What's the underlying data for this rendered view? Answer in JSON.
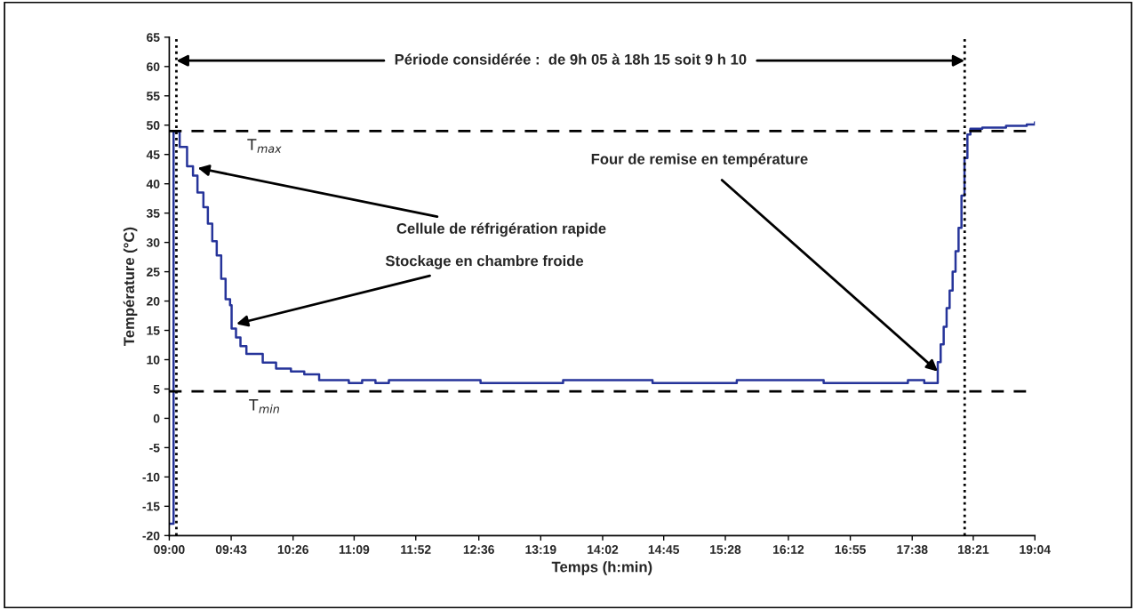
{
  "chart_data": {
    "type": "step",
    "xlabel": "Temps (h:min)",
    "ylabel": "Température (°C)",
    "x": [
      9.0,
      9.05,
      9.069,
      9.121,
      9.207,
      9.276,
      9.328,
      9.397,
      9.449,
      9.5,
      9.552,
      9.604,
      9.655,
      9.707,
      9.725,
      9.776,
      9.828,
      9.897,
      10.087,
      10.242,
      10.415,
      10.57,
      10.743,
      11.088,
      11.243,
      11.398,
      11.554,
      12.62,
      13.58,
      14.62,
      15.6,
      16.61,
      17.59,
      17.78,
      17.937,
      17.971,
      18.006,
      18.04,
      18.075,
      18.11,
      18.144,
      18.179,
      18.213,
      18.248,
      18.282,
      18.317,
      18.455,
      18.731,
      18.972,
      19.0667
    ],
    "series": [
      {
        "color": "#26349a",
        "values": [
          -18,
          48.9,
          48.9,
          46.3,
          43,
          41.4,
          38.5,
          36,
          33.2,
          30.2,
          27.8,
          23.8,
          20.3,
          19.3,
          15.3,
          13.8,
          12.3,
          11,
          9.5,
          8.5,
          8,
          7.5,
          6.5,
          6,
          6.5,
          6,
          6.5,
          6,
          6.5,
          6,
          6.5,
          6,
          6.5,
          6,
          9.6,
          12.6,
          15.6,
          18.8,
          21.8,
          25,
          28.5,
          32.5,
          38,
          44.4,
          48.4,
          49.4,
          49.6,
          49.9,
          50.1,
          50.5
        ]
      }
    ],
    "xlim": [
      9.0,
      19.0667
    ],
    "xticks": [
      {
        "value": 9.0,
        "label": "09:00"
      },
      {
        "value": 9.72,
        "label": "09:43"
      },
      {
        "value": 10.44,
        "label": "10:26"
      },
      {
        "value": 11.15,
        "label": "11:09"
      },
      {
        "value": 11.8667,
        "label": "11:52"
      },
      {
        "value": 12.6,
        "label": "12:36"
      },
      {
        "value": 13.32,
        "label": "13:19"
      },
      {
        "value": 14.04,
        "label": "14:02"
      },
      {
        "value": 14.75,
        "label": "14:45"
      },
      {
        "value": 15.4667,
        "label": "15:28"
      },
      {
        "value": 16.2,
        "label": "16:12"
      },
      {
        "value": 16.92,
        "label": "16:55"
      },
      {
        "value": 17.64,
        "label": "17:38"
      },
      {
        "value": 18.35,
        "label": "18:21"
      },
      {
        "value": 19.0667,
        "label": "19:04"
      }
    ],
    "ylim": [
      -20,
      65
    ],
    "yticks": [
      -20,
      -15,
      -10,
      -5,
      0,
      5,
      10,
      15,
      20,
      25,
      30,
      35,
      40,
      45,
      50,
      55,
      60,
      65
    ],
    "ref_lines": [
      {
        "axis": "y",
        "value": 49,
        "label": "T$_{max}$",
        "color": "#000000",
        "line_style": "dashed"
      },
      {
        "axis": "y",
        "value": 4.6,
        "label": "T$_{min}$",
        "color": "#000000",
        "line_style": "dashed"
      },
      {
        "axis": "x",
        "value": 9.083,
        "color": "#000000",
        "line_style": "dotted"
      },
      {
        "axis": "x",
        "value": 18.25,
        "color": "#000000",
        "line_style": "dotted"
      }
    ],
    "annotations": [
      {
        "text": "Période considérée :  de 9h 05 à 18h 15 soit 9 h 10",
        "x": 9.083,
        "y": 61
      },
      {
        "text": "Cellule de réfrigération rapide",
        "x": 9.33,
        "y": 42.7
      },
      {
        "text": "Stockage en chambre froide",
        "x": 9.78,
        "y": 16.1
      },
      {
        "text": "Four de remise en température",
        "x": 17.937,
        "y": 8
      }
    ],
    "grid": false,
    "legend": false,
    "marker": "none",
    "line_style": "solid"
  }
}
